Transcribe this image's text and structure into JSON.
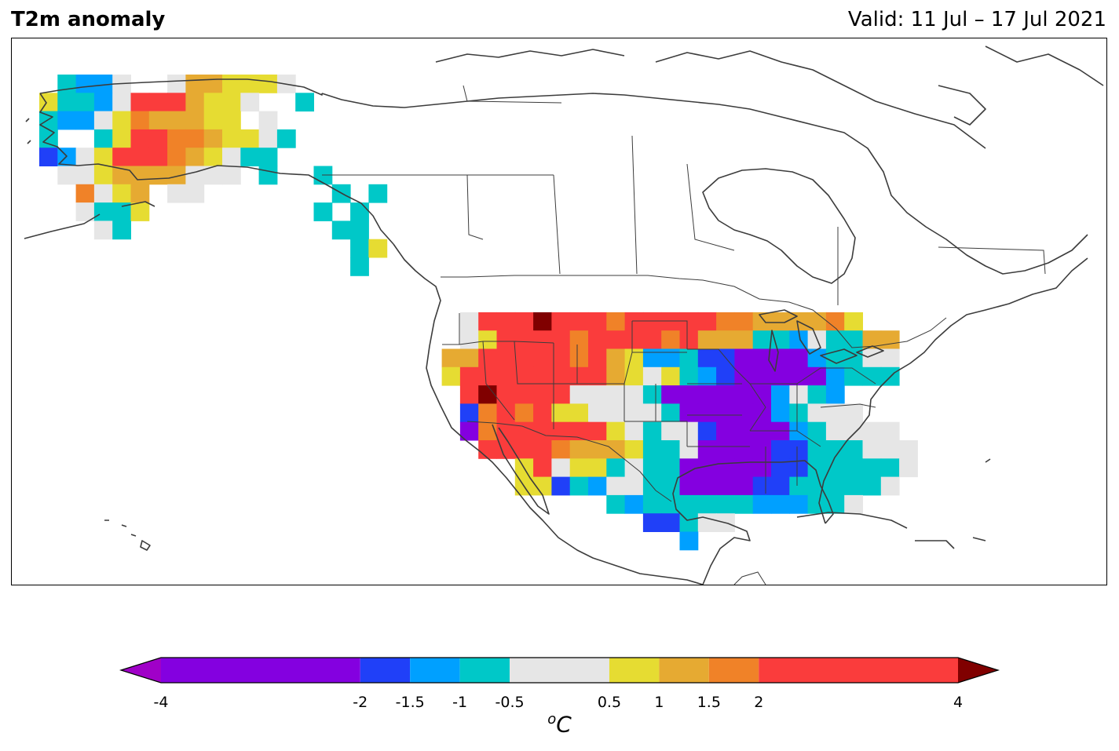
{
  "header": {
    "title": "T2m anomaly",
    "valid": "Valid: 11 Jul – 17 Jul 2021"
  },
  "colorbar": {
    "unit_prefix": "o",
    "unit": "C",
    "levels": [
      -4,
      -2,
      -1.5,
      -1,
      -0.5,
      0.5,
      1,
      1.5,
      2,
      4
    ],
    "tick_labels": [
      "-4",
      "-2",
      "-1.5",
      "-1",
      "-0.5",
      "0.5",
      "1",
      "1.5",
      "2",
      "4"
    ],
    "colors": [
      "#8400e0",
      "#2040f8",
      "#00a0ff",
      "#00c8c8",
      "#e6e6e6",
      "#e6dc32",
      "#e6aa32",
      "#f08228",
      "#fa3c3c"
    ],
    "under_color": "#a000c8",
    "over_color": "#800000"
  },
  "map": {
    "region": "North America",
    "projection": "lat-lon",
    "extent_lon": [
      -170,
      -50
    ],
    "extent_lat": [
      10,
      75
    ],
    "grid_step_deg": 2,
    "features": [
      "coastlines",
      "country borders",
      "state borders"
    ]
  }
}
